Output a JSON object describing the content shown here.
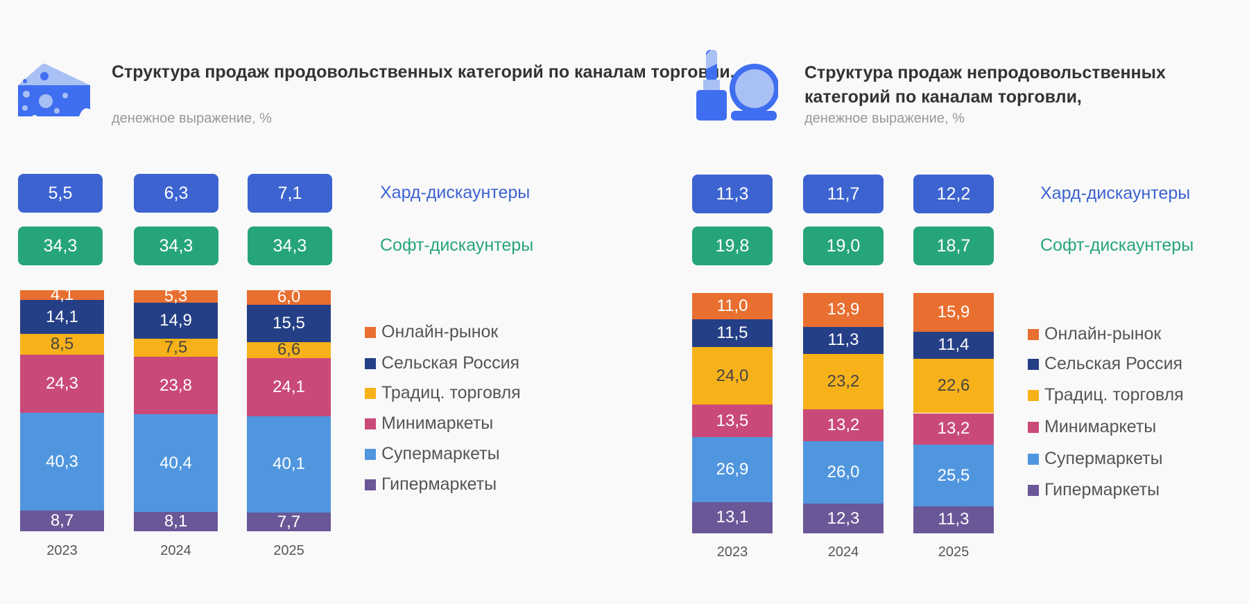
{
  "chart_data": [
    {
      "type": "bar",
      "stacked": true,
      "title": "Структура продаж продовольственных категорий по каналам торговли,",
      "subtitle": "денежное выражение, %",
      "categories": [
        "2023",
        "2024",
        "2025"
      ],
      "summary_rows": [
        {
          "name": "Хард-дискаунтеры",
          "values": [
            "5,5",
            "6,3",
            "7,1"
          ],
          "color": "#3d63d1"
        },
        {
          "name": "Софт-дискаунтеры",
          "values": [
            "34,3",
            "34,3",
            "34,3"
          ],
          "color": "#27a57a"
        }
      ],
      "series": [
        {
          "name": "Онлайн-рынок",
          "values": [
            4.1,
            5.3,
            6.0
          ],
          "labels": [
            "4,1",
            "5,3",
            "6,0"
          ],
          "color": "#e86f30"
        },
        {
          "name": "Сельская Россия",
          "values": [
            14.1,
            14.9,
            15.5
          ],
          "labels": [
            "14,1",
            "14,9",
            "15,5"
          ],
          "color": "#253f86"
        },
        {
          "name": "Традиц. торговля",
          "values": [
            8.5,
            7.5,
            6.6
          ],
          "labels": [
            "8,5",
            "7,5",
            "6,6"
          ],
          "color": "#f7b21a"
        },
        {
          "name": "Минимаркеты",
          "values": [
            24.3,
            23.8,
            24.1
          ],
          "labels": [
            "24,3",
            "23,8",
            "24,1"
          ],
          "color": "#c94a78"
        },
        {
          "name": "Супермаркеты",
          "values": [
            40.3,
            40.4,
            40.1
          ],
          "labels": [
            "40,3",
            "40,4",
            "40,1"
          ],
          "color": "#5096df"
        },
        {
          "name": "Гипермаркеты",
          "values": [
            8.7,
            8.1,
            7.7
          ],
          "labels": [
            "8,7",
            "8,1",
            "7,7"
          ],
          "color": "#6a5797"
        }
      ],
      "ylim": [
        0,
        100
      ],
      "legend": "right",
      "icon": "cheese-icon"
    },
    {
      "type": "bar",
      "stacked": true,
      "title": "Структура продаж непродовольственных категорий по каналам торговли,",
      "subtitle": "денежное выражение, %",
      "categories": [
        "2023",
        "2024",
        "2025"
      ],
      "summary_rows": [
        {
          "name": "Хард-дискаунтеры",
          "values": [
            "11,3",
            "11,7",
            "12,2"
          ],
          "color": "#3d63d1"
        },
        {
          "name": "Софт-дискаунтеры",
          "values": [
            "19,8",
            "19,0",
            "18,7"
          ],
          "color": "#27a57a"
        }
      ],
      "series": [
        {
          "name": "Онлайн-рынок",
          "values": [
            11.0,
            13.9,
            15.9
          ],
          "labels": [
            "11,0",
            "13,9",
            "15,9"
          ],
          "color": "#e86f30"
        },
        {
          "name": "Сельская Россия",
          "values": [
            11.5,
            11.3,
            11.4
          ],
          "labels": [
            "11,5",
            "11,3",
            "11,4"
          ],
          "color": "#253f86"
        },
        {
          "name": "Традиц. торговля",
          "values": [
            24.0,
            23.2,
            22.6
          ],
          "labels": [
            "24,0",
            "23,2",
            "22,6"
          ],
          "color": "#f7b21a"
        },
        {
          "name": "Минимаркеты",
          "values": [
            13.5,
            13.2,
            13.2
          ],
          "labels": [
            "13,5",
            "13,2",
            "13,2"
          ],
          "color": "#c94a78"
        },
        {
          "name": "Супермаркеты",
          "values": [
            26.9,
            26.0,
            25.5
          ],
          "labels": [
            "26,9",
            "26,0",
            "25,5"
          ],
          "color": "#5096df"
        },
        {
          "name": "Гипермаркеты",
          "values": [
            13.1,
            12.3,
            11.3
          ],
          "labels": [
            "13,1",
            "12,3",
            "11,3"
          ],
          "color": "#6a5797"
        }
      ],
      "ylim": [
        0,
        100
      ],
      "legend": "right",
      "icon": "lipstick-mirror-icon"
    }
  ]
}
